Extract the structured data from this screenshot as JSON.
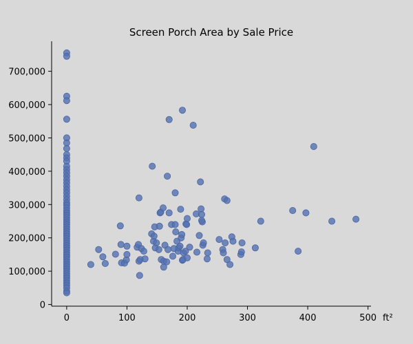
{
  "chart_data": {
    "type": "scatter",
    "title": "Screen Porch Area by Sale Price",
    "xlabel": "ft²",
    "ylabel": "",
    "xlim": [
      -25,
      505
    ],
    "ylim": [
      -5000,
      790000
    ],
    "grid": false,
    "marker_color": "#5470b0",
    "background": "#d9d9d9",
    "x_ticks": [
      0,
      100,
      200,
      300,
      400,
      500
    ],
    "x_tick_labels": [
      "0",
      "100",
      "200",
      "300",
      "400",
      "500"
    ],
    "y_ticks": [
      0,
      100000,
      200000,
      300000,
      400000,
      500000,
      600000,
      700000
    ],
    "y_tick_labels": [
      "0",
      "100,000",
      "200,000",
      "300,000",
      "400,000",
      "500,000",
      "600,000",
      "700,000"
    ],
    "points": [
      [
        0,
        755000
      ],
      [
        0,
        745000
      ],
      [
        0,
        625000
      ],
      [
        0,
        612000
      ],
      [
        0,
        556000
      ],
      [
        0,
        500000
      ],
      [
        0,
        485000
      ],
      [
        0,
        468000
      ],
      [
        0,
        450000
      ],
      [
        0,
        440000
      ],
      [
        0,
        430000
      ],
      [
        0,
        415000
      ],
      [
        0,
        405000
      ],
      [
        0,
        395000
      ],
      [
        0,
        385000
      ],
      [
        0,
        375000
      ],
      [
        0,
        365000
      ],
      [
        0,
        355000
      ],
      [
        0,
        345000
      ],
      [
        0,
        335000
      ],
      [
        0,
        325000
      ],
      [
        0,
        315000
      ],
      [
        0,
        305000
      ],
      [
        0,
        298000
      ],
      [
        0,
        290000
      ],
      [
        0,
        282000
      ],
      [
        0,
        275000
      ],
      [
        0,
        268000
      ],
      [
        0,
        261000
      ],
      [
        0,
        254000
      ],
      [
        0,
        247000
      ],
      [
        0,
        240000
      ],
      [
        0,
        233000
      ],
      [
        0,
        226000
      ],
      [
        0,
        219000
      ],
      [
        0,
        212000
      ],
      [
        0,
        205000
      ],
      [
        0,
        198000
      ],
      [
        0,
        191000
      ],
      [
        0,
        184000
      ],
      [
        0,
        177000
      ],
      [
        0,
        170000
      ],
      [
        0,
        163000
      ],
      [
        0,
        156000
      ],
      [
        0,
        149000
      ],
      [
        0,
        142000
      ],
      [
        0,
        135000
      ],
      [
        0,
        128000
      ],
      [
        0,
        121000
      ],
      [
        0,
        114000
      ],
      [
        0,
        107000
      ],
      [
        0,
        100000
      ],
      [
        0,
        93000
      ],
      [
        0,
        86000
      ],
      [
        0,
        79000
      ],
      [
        0,
        72000
      ],
      [
        0,
        65000
      ],
      [
        0,
        58000
      ],
      [
        0,
        50000
      ],
      [
        0,
        40000
      ],
      [
        0,
        35000
      ],
      [
        40,
        120000
      ],
      [
        53,
        165000
      ],
      [
        60,
        143000
      ],
      [
        64,
        123000
      ],
      [
        81,
        151000
      ],
      [
        89,
        236000
      ],
      [
        90,
        180000
      ],
      [
        91,
        125000
      ],
      [
        96,
        124000
      ],
      [
        99,
        134000
      ],
      [
        100,
        175000
      ],
      [
        100,
        150000
      ],
      [
        117,
        172000
      ],
      [
        119,
        180000
      ],
      [
        120,
        320000
      ],
      [
        120,
        130000
      ],
      [
        121,
        87000
      ],
      [
        122,
        135000
      ],
      [
        124,
        168000
      ],
      [
        128,
        160000
      ],
      [
        130,
        137000
      ],
      [
        142,
        415000
      ],
      [
        141,
        212000
      ],
      [
        144,
        190000
      ],
      [
        145,
        205000
      ],
      [
        146,
        233000
      ],
      [
        147,
        170000
      ],
      [
        149,
        185000
      ],
      [
        153,
        165000
      ],
      [
        154,
        235000
      ],
      [
        155,
        275000
      ],
      [
        156,
        277000
      ],
      [
        157,
        135000
      ],
      [
        160,
        290000
      ],
      [
        161,
        112000
      ],
      [
        161,
        130000
      ],
      [
        163,
        178000
      ],
      [
        166,
        128000
      ],
      [
        167,
        385000
      ],
      [
        168,
        165000
      ],
      [
        170,
        555000
      ],
      [
        170,
        275000
      ],
      [
        174,
        240000
      ],
      [
        176,
        145000
      ],
      [
        178,
        168000
      ],
      [
        180,
        335000
      ],
      [
        180,
        240000
      ],
      [
        181,
        218000
      ],
      [
        183,
        190000
      ],
      [
        185,
        160000
      ],
      [
        186,
        170000
      ],
      [
        188,
        175000
      ],
      [
        189,
        286000
      ],
      [
        190,
        200000
      ],
      [
        191,
        210000
      ],
      [
        192,
        583000
      ],
      [
        192,
        133000
      ],
      [
        193,
        135000
      ],
      [
        194,
        155000
      ],
      [
        197,
        160000
      ],
      [
        198,
        242000
      ],
      [
        199,
        240000
      ],
      [
        200,
        140000
      ],
      [
        200,
        258000
      ],
      [
        204,
        172000
      ],
      [
        210,
        538000
      ],
      [
        215,
        272000
      ],
      [
        216,
        157000
      ],
      [
        220,
        207000
      ],
      [
        222,
        368000
      ],
      [
        223,
        287000
      ],
      [
        224,
        270000
      ],
      [
        225,
        248000
      ],
      [
        224,
        252000
      ],
      [
        226,
        178000
      ],
      [
        227,
        185000
      ],
      [
        233,
        137000
      ],
      [
        234,
        155000
      ],
      [
        253,
        195000
      ],
      [
        259,
        165000
      ],
      [
        260,
        155000
      ],
      [
        262,
        317000
      ],
      [
        263,
        185000
      ],
      [
        266,
        312000
      ],
      [
        266,
        135000
      ],
      [
        271,
        120000
      ],
      [
        274,
        203000
      ],
      [
        276,
        190000
      ],
      [
        289,
        150000
      ],
      [
        290,
        158000
      ],
      [
        291,
        185000
      ],
      [
        322,
        250000
      ],
      [
        313,
        170000
      ],
      [
        375,
        282000
      ],
      [
        384,
        160000
      ],
      [
        397,
        275000
      ],
      [
        410,
        474000
      ],
      [
        440,
        250000
      ],
      [
        480,
        256000
      ]
    ]
  }
}
